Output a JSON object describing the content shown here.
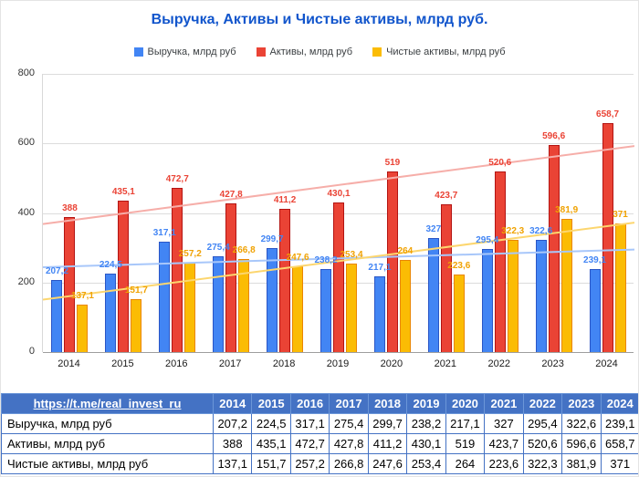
{
  "chart_data": {
    "type": "bar",
    "title": "Выручка, Активы и Чистые активы, млрд руб.",
    "title_color": "#1155cc",
    "categories": [
      "2014",
      "2015",
      "2016",
      "2017",
      "2018",
      "2019",
      "2020",
      "2021",
      "2022",
      "2023",
      "2024"
    ],
    "yticks": [
      0,
      200,
      400,
      600,
      800
    ],
    "ylim": [
      0,
      800
    ],
    "grid": true,
    "legend_position": "top",
    "trendlines": true,
    "series": [
      {
        "key": "revenue",
        "name": "Выручка, млрд руб",
        "color": "#4285f4",
        "border_color": "#2a56c6",
        "label_color": "#4285f4",
        "trend_color": "#a8c7fa",
        "values": [
          207.2,
          224.5,
          317.1,
          275.4,
          299.7,
          238.2,
          217.1,
          327,
          295.4,
          322.6,
          239.1
        ],
        "labels": [
          "207,2",
          "224,5",
          "317,1",
          "275,4",
          "299,7",
          "238,2",
          "217,1",
          "327",
          "295,4",
          "322,6",
          "239,1"
        ]
      },
      {
        "key": "assets",
        "name": "Активы, млрд руб",
        "color": "#ea4335",
        "border_color": "#b31412",
        "label_color": "#ea4335",
        "trend_color": "#f6aea9",
        "values": [
          388,
          435.1,
          472.7,
          427.8,
          411.2,
          430.1,
          519,
          423.7,
          520.6,
          596.6,
          658.7
        ],
        "labels": [
          "388",
          "435,1",
          "472,7",
          "427,8",
          "411,2",
          "430,1",
          "519",
          "423,7",
          "520,6",
          "596,6",
          "658,7"
        ]
      },
      {
        "key": "net_assets",
        "name": "Чистые активы, млрд руб",
        "color": "#fbbc04",
        "border_color": "#ea8600",
        "label_color": "#f0a202",
        "trend_color": "#fcd66f",
        "values": [
          137.1,
          151.7,
          257.2,
          266.8,
          247.6,
          253.4,
          264,
          223.6,
          322.3,
          381.9,
          371
        ],
        "labels": [
          "137,1",
          "151,7",
          "257,2",
          "266,8",
          "247,6",
          "253,4",
          "264",
          "223,6",
          "322,3",
          "381,9",
          "371"
        ]
      }
    ]
  },
  "table": {
    "link": "https://t.me/real_invest_ru",
    "header_bg": "#4472c4",
    "border_color": "#4472c4",
    "columns": [
      "2014",
      "2015",
      "2016",
      "2017",
      "2018",
      "2019",
      "2020",
      "2021",
      "2022",
      "2023",
      "2024"
    ],
    "rows": [
      {
        "key": "revenue",
        "label": "Выручка, млрд руб",
        "values": [
          "207,2",
          "224,5",
          "317,1",
          "275,4",
          "299,7",
          "238,2",
          "217,1",
          "327",
          "295,4",
          "322,6",
          "239,1"
        ]
      },
      {
        "key": "assets",
        "label": "Активы, млрд руб",
        "values": [
          "388",
          "435,1",
          "472,7",
          "427,8",
          "411,2",
          "430,1",
          "519",
          "423,7",
          "520,6",
          "596,6",
          "658,7"
        ]
      },
      {
        "key": "net_assets",
        "label": "Чистые активы, млрд руб",
        "values": [
          "137,1",
          "151,7",
          "257,2",
          "266,8",
          "247,6",
          "253,4",
          "264",
          "223,6",
          "322,3",
          "381,9",
          "371"
        ]
      }
    ]
  }
}
